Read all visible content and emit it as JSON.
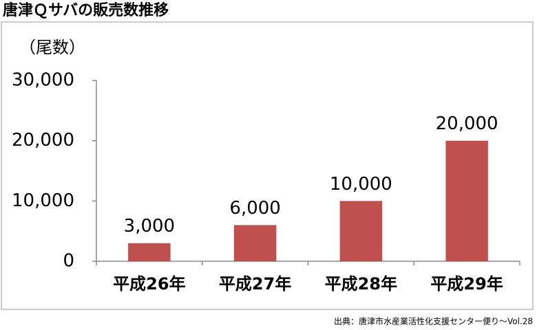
{
  "chart_data": {
    "type": "bar",
    "title": "唐津Ｑサバの販売数推移",
    "y_label": "（尾数）",
    "source": "出典：唐津市水産業活性化支援センター便り〜Vol.28",
    "categories": [
      "平成26年",
      "平成27年",
      "平成28年",
      "平成29年"
    ],
    "values": [
      3000,
      6000,
      10000,
      20000
    ],
    "value_labels": [
      "3,000",
      "6,000",
      "10,000",
      "20,000"
    ],
    "color": "#c0504d",
    "ylim": [
      0,
      30000
    ],
    "yticks": [
      0,
      {
        "value": 10000,
        "label": "10,000"
      },
      {
        "value": 20000,
        "label": "20,000"
      },
      {
        "value": 30000,
        "label": "30,000"
      }
    ],
    "grid": false
  }
}
